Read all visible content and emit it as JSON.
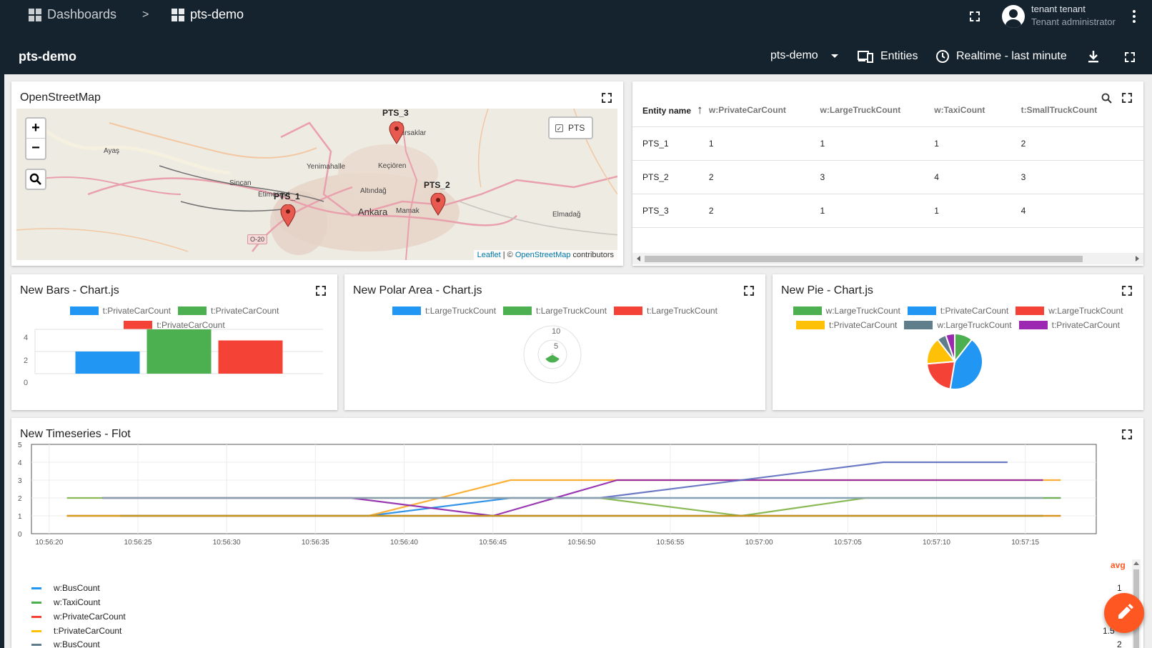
{
  "topbar": {
    "breadcrumb_dashboards": "Dashboards",
    "breadcrumb_separator": ">",
    "breadcrumb_current": "pts-demo",
    "user_name": "tenant tenant",
    "user_role": "Tenant administrator"
  },
  "dashboard": {
    "title": "pts-demo",
    "state_select": "pts-demo",
    "entities_label": "Entities",
    "timewindow_label": "Realtime - last minute"
  },
  "map": {
    "title": "OpenStreetMap",
    "layer_toggle": "PTS",
    "attribution_leaflet": "Leaflet",
    "attribution_sep": " | © ",
    "attribution_osm": "OpenStreetMap",
    "attribution_tail": " contributors",
    "places": [
      "Ayaş",
      "Sincan",
      "Etimesgut",
      "Yenimahalle",
      "Keçiören",
      "Pursaklar",
      "Altındağ",
      "Ankara",
      "Mamak",
      "Elmadağ",
      "O-20"
    ],
    "markers": [
      "PTS_3",
      "PTS_1",
      "PTS_2"
    ]
  },
  "entity_table": {
    "columns": [
      "Entity name",
      "w:PrivateCarCount",
      "w:LargeTruckCount",
      "w:TaxiCount",
      "t:SmallTruckCount"
    ],
    "rows": [
      [
        "PTS_1",
        "1",
        "1",
        "1",
        "2"
      ],
      [
        "PTS_2",
        "2",
        "3",
        "4",
        "3"
      ],
      [
        "PTS_3",
        "2",
        "1",
        "1",
        "4"
      ]
    ]
  },
  "bars_widget": {
    "title": "New Bars - Chart.js",
    "legend": [
      "t:PrivateCarCount",
      "t:PrivateCarCount",
      "t:PrivateCarCount"
    ],
    "yticks": [
      "4",
      "2",
      "0"
    ]
  },
  "polar_widget": {
    "title": "New Polar Area - Chart.js",
    "legend": [
      "t:LargeTruckCount",
      "t:LargeTruckCount",
      "t:LargeTruckCount"
    ],
    "rticks": [
      "10",
      "5"
    ]
  },
  "pie_widget": {
    "title": "New Pie - Chart.js",
    "legend": [
      "w:LargeTruckCount",
      "t:PrivateCarCount",
      "w:LargeTruckCount",
      "t:PrivateCarCount",
      "w:LargeTruckCount",
      "t:PrivateCarCount"
    ]
  },
  "flot_widget": {
    "title": "New Timeseries - Flot",
    "yticks": [
      "5",
      "4",
      "3",
      "2",
      "1",
      "0"
    ],
    "xticks": [
      "10:56:20",
      "10:56:25",
      "10:56:30",
      "10:56:35",
      "10:56:40",
      "10:56:45",
      "10:56:50",
      "10:56:55",
      "10:57:00",
      "10:57:05",
      "10:57:10",
      "10:57:15"
    ],
    "avg_header": "avg",
    "legend": [
      {
        "label": "w:BusCount",
        "avg": "1"
      },
      {
        "label": "w:TaxiCount",
        "avg": ""
      },
      {
        "label": "w:PrivateCarCount",
        "avg": ""
      },
      {
        "label": "t:PrivateCarCount",
        "avg": "1.5"
      },
      {
        "label": "w:BusCount",
        "avg": "2"
      }
    ]
  },
  "chart_data": [
    {
      "type": "bar",
      "title": "New Bars - Chart.js",
      "categories": [
        ""
      ],
      "series": [
        {
          "name": "t:PrivateCarCount",
          "values": [
            2
          ],
          "color": "#2196f3"
        },
        {
          "name": "t:PrivateCarCount",
          "values": [
            4
          ],
          "color": "#4caf50"
        },
        {
          "name": "t:PrivateCarCount",
          "values": [
            3
          ],
          "color": "#f44336"
        }
      ],
      "ylim": [
        0,
        4
      ],
      "grid": true,
      "legend": "top"
    },
    {
      "type": "polar",
      "title": "New Polar Area - Chart.js",
      "series": [
        {
          "name": "t:LargeTruckCount",
          "value": 0.5,
          "color": "#2196f3"
        },
        {
          "name": "t:LargeTruckCount",
          "value": 3,
          "color": "#4caf50"
        },
        {
          "name": "t:LargeTruckCount",
          "value": 0.5,
          "color": "#f44336"
        }
      ],
      "rlim": [
        0,
        10
      ],
      "legend": "top"
    },
    {
      "type": "pie",
      "title": "New Pie - Chart.js",
      "slices": [
        {
          "name": "w:LargeTruckCount",
          "value": 1,
          "color": "#4caf50"
        },
        {
          "name": "t:PrivateCarCount",
          "value": 4,
          "color": "#2196f3"
        },
        {
          "name": "w:LargeTruckCount",
          "value": 2,
          "color": "#f44336"
        },
        {
          "name": "t:PrivateCarCount",
          "value": 1.5,
          "color": "#ffc107"
        },
        {
          "name": "w:LargeTruckCount",
          "value": 0.5,
          "color": "#607d8b"
        },
        {
          "name": "t:PrivateCarCount",
          "value": 0.5,
          "color": "#9c27b0"
        }
      ],
      "legend": "top"
    },
    {
      "type": "line",
      "title": "New Timeseries - Flot",
      "xlabel": "",
      "ylabel": "",
      "ylim": [
        0,
        5
      ],
      "xlim": [
        "10:56:19",
        "10:57:19"
      ],
      "grid": true,
      "legend": "bottom",
      "series": [
        {
          "name": "w:BusCount",
          "color": "#1e88e5",
          "x": [
            "10:56:21",
            "10:56:38",
            "10:56:46",
            "10:57:17"
          ],
          "y": [
            1,
            1,
            2,
            2
          ]
        },
        {
          "name": "w:TaxiCount",
          "color": "#7cb342",
          "x": [
            "10:56:21",
            "10:56:51",
            "10:56:59",
            "10:57:06",
            "10:57:17"
          ],
          "y": [
            2,
            2,
            1,
            2,
            2
          ]
        },
        {
          "name": "w:PrivateCarCount",
          "color": "#e53935",
          "x": [
            "10:56:21",
            "10:57:17"
          ],
          "y": [
            1,
            1
          ]
        },
        {
          "name": "t:PrivateCarCount",
          "color": "#f9a825",
          "x": [
            "10:56:21",
            "10:56:38",
            "10:56:46",
            "10:57:17"
          ],
          "y": [
            1,
            1,
            3,
            3
          ]
        },
        {
          "name": "w:BusCount",
          "color": "#8e24aa",
          "x": [
            "10:56:23",
            "10:56:37",
            "10:56:45",
            "10:56:52",
            "10:57:16"
          ],
          "y": [
            2,
            2,
            1,
            3,
            3
          ]
        },
        {
          "name": "",
          "color": "#5c6bc0",
          "x": [
            "10:56:23",
            "10:56:51",
            "10:57:07",
            "10:57:14"
          ],
          "y": [
            2,
            2,
            4,
            4
          ]
        },
        {
          "name": "",
          "color": "#90a4ae",
          "x": [
            "10:56:23",
            "10:57:16"
          ],
          "y": [
            2,
            2
          ]
        },
        {
          "name": "",
          "color": "#263238",
          "x": [
            "10:56:24",
            "10:57:16"
          ],
          "y": [
            1,
            1
          ]
        },
        {
          "name": "",
          "color": "#d4a017",
          "x": [
            "10:56:21",
            "10:57:17"
          ],
          "y": [
            1,
            1
          ]
        }
      ]
    }
  ]
}
